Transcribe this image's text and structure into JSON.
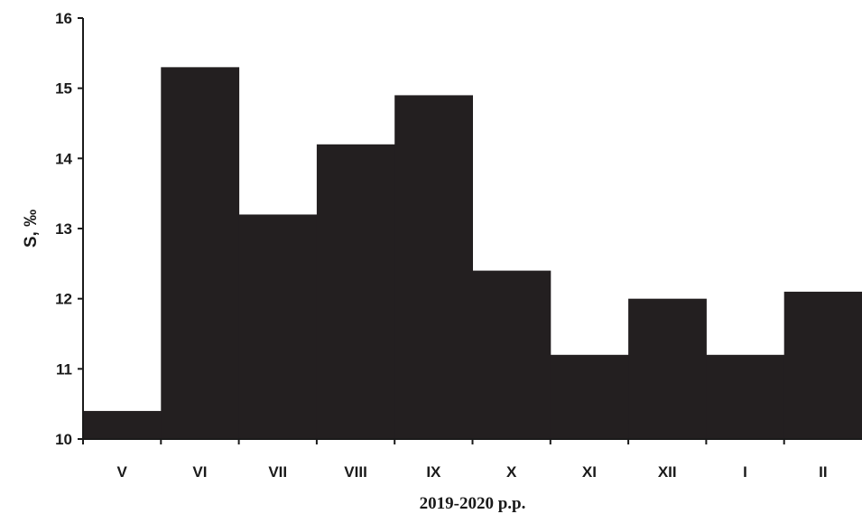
{
  "chart_data": {
    "type": "bar",
    "categories": [
      "V",
      "VI",
      "VII",
      "VIII",
      "IX",
      "X",
      "XI",
      "XII",
      "I",
      "II"
    ],
    "values": [
      10.4,
      15.3,
      13.2,
      14.2,
      14.9,
      12.4,
      11.2,
      12.0,
      11.2,
      12.1
    ],
    "title": "",
    "xlabel": "2019-2020 р.р.",
    "ylabel": "S, ‰",
    "ylim": [
      10,
      16
    ],
    "yticks": [
      10,
      11,
      12,
      13,
      14,
      15,
      16
    ],
    "grid": false,
    "legend": "none",
    "bar_color": "#231f20",
    "axis_color": "#1a1a1a"
  }
}
